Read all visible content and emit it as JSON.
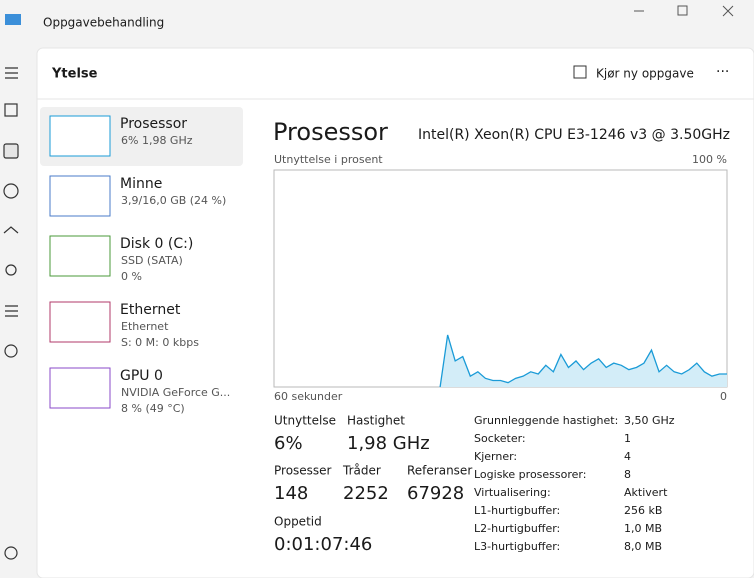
{
  "window": {
    "title": "Oppgavebehandling"
  },
  "header": {
    "title": "Ytelse",
    "action": "Kjør ny oppgave"
  },
  "sidebar": [
    {
      "name": "Prosessor",
      "line1": "6% 1,98 GHz"
    },
    {
      "name": "Minne",
      "line1": "3,9/16,0 GB (24 %)"
    },
    {
      "name": "Disk 0 (C:)",
      "line1": "SSD (SATA)",
      "line2": "0 %"
    },
    {
      "name": "Ethernet",
      "line1": "Ethernet",
      "line2": "S: 0 M: 0 kbps"
    },
    {
      "name": "GPU 0",
      "line1": "NVIDIA GeForce G...",
      "line2": "8 % (49 °C)"
    }
  ],
  "main": {
    "title": "Prosessor",
    "model": "Intel(R) Xeon(R) CPU E3-1246 v3 @ 3.50GHz"
  },
  "chart_data": {
    "type": "area",
    "y_label": "Utnyttelse i prosent",
    "color": "#1a9bd7",
    "fill": "#d3edf8",
    "xlim": [
      60,
      0
    ],
    "xticks": [
      {
        "value": 60,
        "label": "60 sekunder"
      },
      0
    ],
    "ylim": [
      0,
      100
    ],
    "yticks": [
      {
        "value": 100,
        "label": "100 %"
      }
    ],
    "x": [
      38,
      37,
      36,
      35,
      34,
      33,
      32,
      31,
      30,
      29,
      28,
      27,
      26,
      25,
      24,
      23,
      22,
      21,
      20,
      19,
      18,
      17,
      16,
      15,
      14,
      13,
      12,
      11,
      10,
      9,
      8,
      7,
      6,
      5,
      4,
      3,
      2,
      1,
      0
    ],
    "values": [
      0,
      24,
      12,
      14,
      5,
      7,
      4,
      3,
      3,
      2,
      4,
      5,
      7,
      6,
      10,
      7,
      15,
      9,
      12,
      8,
      11,
      13,
      9,
      11,
      10,
      8,
      9,
      11,
      17,
      7,
      10,
      7,
      6,
      8,
      11,
      7,
      5,
      6,
      6
    ]
  },
  "stats": [
    {
      "label": "Utnyttelse",
      "value": "6%"
    },
    {
      "label": "Hastighet",
      "value": "1,98 GHz"
    },
    {
      "label": "Prosesser",
      "value": "148"
    },
    {
      "label": "Tråder",
      "value": "2252"
    },
    {
      "label": "Referanser",
      "value": "67928"
    },
    {
      "label": "Oppetid",
      "value": "0:01:07:46"
    }
  ],
  "details": [
    [
      "Grunnleggende hastighet:",
      "3,50 GHz"
    ],
    [
      "Socketer:",
      "1"
    ],
    [
      "Kjerner:",
      "4"
    ],
    [
      "Logiske prosessorer:",
      "8"
    ],
    [
      "Virtualisering:",
      "Aktivert"
    ],
    [
      "L1-hurtigbuffer:",
      "256 kB"
    ],
    [
      "L2-hurtigbuffer:",
      "1,0 MB"
    ],
    [
      "L3-hurtigbuffer:",
      "8,0 MB"
    ]
  ]
}
